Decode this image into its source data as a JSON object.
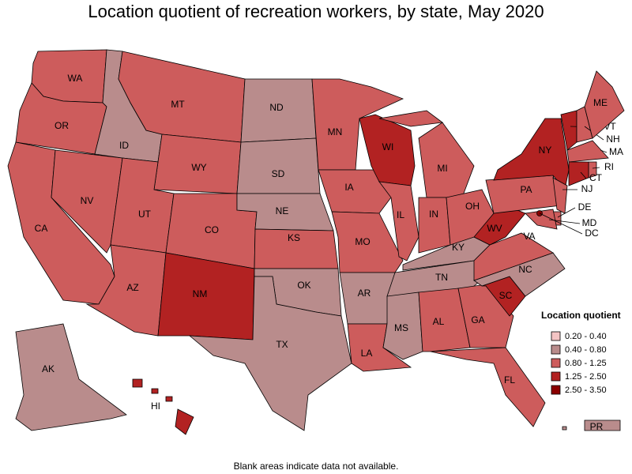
{
  "title": "Location quotient of recreation workers, by state, May 2020",
  "note": "Blank areas indicate data not available.",
  "legend": {
    "title": "Location quotient",
    "items": [
      {
        "label": "0.20 - 0.40",
        "color": "#f4c4c4"
      },
      {
        "label": "0.40 - 0.80",
        "color": "#b98c8c"
      },
      {
        "label": "0.80 - 1.25",
        "color": "#cd5c5c"
      },
      {
        "label": "1.25 - 2.50",
        "color": "#b22222"
      },
      {
        "label": "2.50 - 3.50",
        "color": "#8b0000"
      }
    ]
  },
  "states": [
    {
      "abbr": "WA",
      "color": "#cd5c5c"
    },
    {
      "abbr": "OR",
      "color": "#cd5c5c"
    },
    {
      "abbr": "CA",
      "color": "#cd5c5c"
    },
    {
      "abbr": "NV",
      "color": "#cd5c5c"
    },
    {
      "abbr": "ID",
      "color": "#b98c8c"
    },
    {
      "abbr": "MT",
      "color": "#cd5c5c"
    },
    {
      "abbr": "WY",
      "color": "#cd5c5c"
    },
    {
      "abbr": "UT",
      "color": "#cd5c5c"
    },
    {
      "abbr": "CO",
      "color": "#cd5c5c"
    },
    {
      "abbr": "AZ",
      "color": "#cd5c5c"
    },
    {
      "abbr": "NM",
      "color": "#b22222"
    },
    {
      "abbr": "ND",
      "color": "#b98c8c"
    },
    {
      "abbr": "SD",
      "color": "#b98c8c"
    },
    {
      "abbr": "NE",
      "color": "#b98c8c"
    },
    {
      "abbr": "KS",
      "color": "#cd5c5c"
    },
    {
      "abbr": "OK",
      "color": "#b98c8c"
    },
    {
      "abbr": "TX",
      "color": "#b98c8c"
    },
    {
      "abbr": "MN",
      "color": "#cd5c5c"
    },
    {
      "abbr": "IA",
      "color": "#cd5c5c"
    },
    {
      "abbr": "MO",
      "color": "#cd5c5c"
    },
    {
      "abbr": "AR",
      "color": "#b98c8c"
    },
    {
      "abbr": "LA",
      "color": "#cd5c5c"
    },
    {
      "abbr": "WI",
      "color": "#b22222"
    },
    {
      "abbr": "IL",
      "color": "#cd5c5c"
    },
    {
      "abbr": "MI",
      "color": "#cd5c5c"
    },
    {
      "abbr": "IN",
      "color": "#cd5c5c"
    },
    {
      "abbr": "OH",
      "color": "#cd5c5c"
    },
    {
      "abbr": "KY",
      "color": "#b98c8c"
    },
    {
      "abbr": "TN",
      "color": "#b98c8c"
    },
    {
      "abbr": "MS",
      "color": "#b98c8c"
    },
    {
      "abbr": "AL",
      "color": "#cd5c5c"
    },
    {
      "abbr": "GA",
      "color": "#cd5c5c"
    },
    {
      "abbr": "FL",
      "color": "#cd5c5c"
    },
    {
      "abbr": "SC",
      "color": "#b22222"
    },
    {
      "abbr": "NC",
      "color": "#b98c8c"
    },
    {
      "abbr": "VA",
      "color": "#cd5c5c"
    },
    {
      "abbr": "WV",
      "color": "#b22222"
    },
    {
      "abbr": "PA",
      "color": "#cd5c5c"
    },
    {
      "abbr": "NY",
      "color": "#b22222"
    },
    {
      "abbr": "VT",
      "color": "#b22222"
    },
    {
      "abbr": "NH",
      "color": "#cd5c5c"
    },
    {
      "abbr": "ME",
      "color": "#cd5c5c"
    },
    {
      "abbr": "MA",
      "color": "#cd5c5c"
    },
    {
      "abbr": "RI",
      "color": "#cd5c5c"
    },
    {
      "abbr": "CT",
      "color": "#b22222"
    },
    {
      "abbr": "NJ",
      "color": "#cd5c5c"
    },
    {
      "abbr": "DE",
      "color": "#cd5c5c"
    },
    {
      "abbr": "MD",
      "color": "#cd5c5c"
    },
    {
      "abbr": "DC",
      "color": "#8b0000"
    },
    {
      "abbr": "AK",
      "color": "#b98c8c"
    },
    {
      "abbr": "HI",
      "color": "#b22222"
    },
    {
      "abbr": "PR",
      "color": "#b98c8c"
    }
  ]
}
